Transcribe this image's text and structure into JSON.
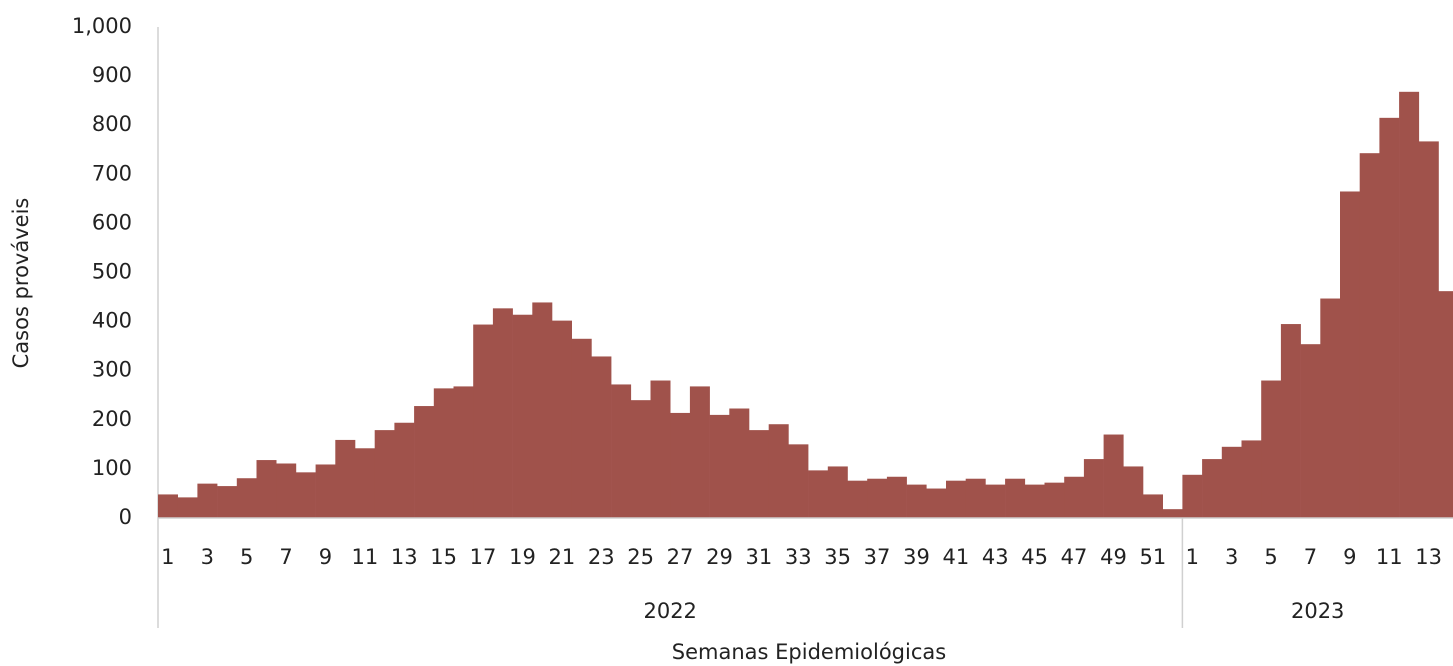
{
  "chart_data": {
    "type": "bar",
    "color": "#a0524b",
    "y_label": "Casos prováveis",
    "x_label": "Semanas Epidemiológicas",
    "ylim": [
      0,
      1000
    ],
    "yticks": [
      0,
      100,
      200,
      300,
      400,
      500,
      600,
      700,
      800,
      900,
      {
        "value": 1000,
        "label": "1,000"
      }
    ],
    "groups": [
      {
        "name": "2022",
        "categories": [
          "1",
          null,
          "3",
          null,
          "5",
          null,
          "7",
          null,
          "9",
          null,
          "11",
          null,
          "13",
          null,
          "15",
          null,
          "17",
          null,
          "19",
          null,
          "21",
          null,
          "23",
          null,
          "25",
          null,
          "27",
          null,
          "29",
          null,
          "31",
          null,
          "33",
          null,
          "35",
          null,
          "37",
          null,
          "39",
          null,
          "41",
          null,
          "43",
          null,
          "45",
          null,
          "47",
          null,
          "49",
          null,
          "51",
          null
        ],
        "values": [
          48,
          42,
          70,
          65,
          81,
          118,
          111,
          93,
          109,
          159,
          142,
          179,
          194,
          228,
          264,
          268,
          394,
          427,
          414,
          439,
          402,
          365,
          329,
          272,
          240,
          280,
          214,
          268,
          210,
          223,
          179,
          191,
          150,
          97,
          105,
          76,
          80,
          84,
          68,
          60,
          76,
          80,
          68,
          80,
          68,
          72,
          84,
          120,
          170,
          105,
          48,
          18
        ]
      },
      {
        "name": "2023",
        "categories": [
          "1",
          null,
          "3",
          null,
          "5",
          null,
          "7",
          null,
          "9",
          null,
          "11",
          null,
          "13",
          null
        ],
        "values": [
          88,
          120,
          145,
          158,
          280,
          395,
          354,
          447,
          665,
          743,
          815,
          868,
          767,
          462
        ]
      }
    ]
  }
}
